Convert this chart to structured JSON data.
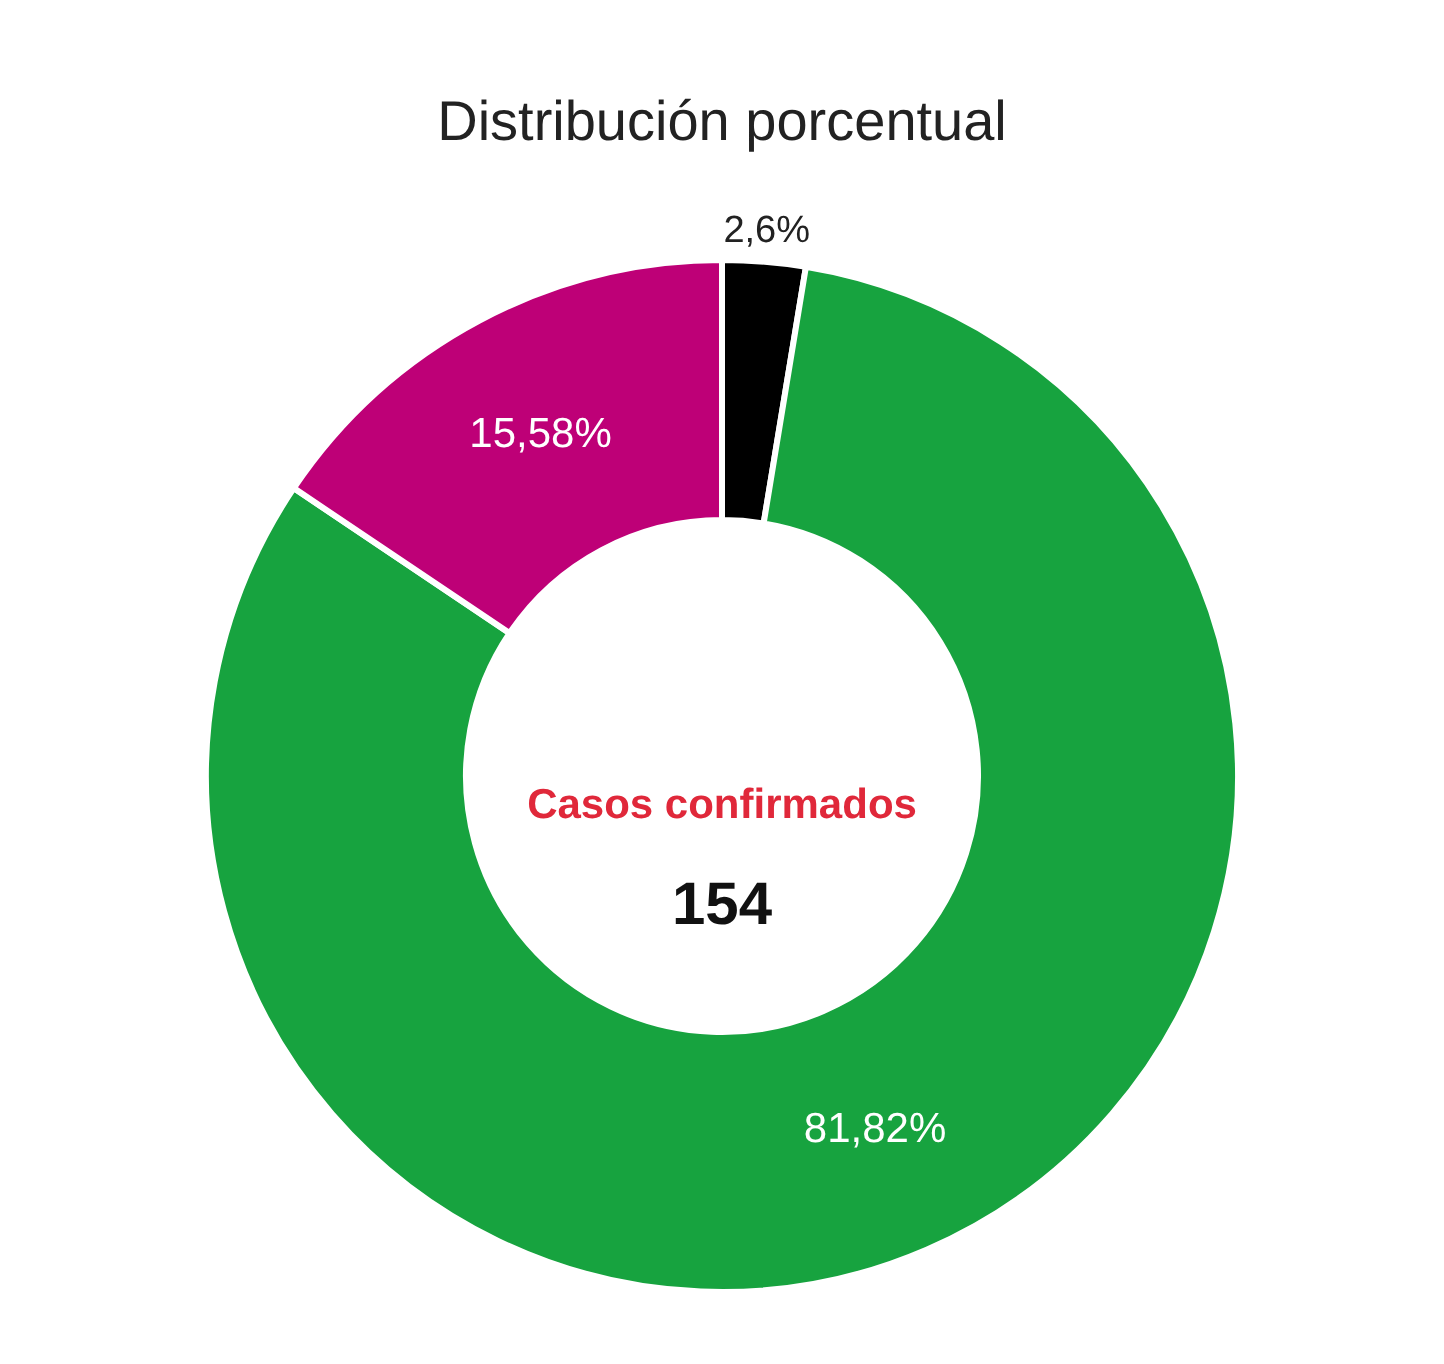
{
  "chart_data": {
    "type": "donut",
    "title": "Distribución porcentual",
    "categories": [
      null,
      null,
      null
    ],
    "values": [
      2.6,
      81.82,
      15.58
    ],
    "colors": [
      "#000000",
      "#17a33f",
      "#be0077"
    ],
    "value_labels": [
      "2,6%",
      "81,82%",
      "15,58%"
    ],
    "annotations": [
      "Casos confirmados",
      "154"
    ],
    "legend": false
  }
}
